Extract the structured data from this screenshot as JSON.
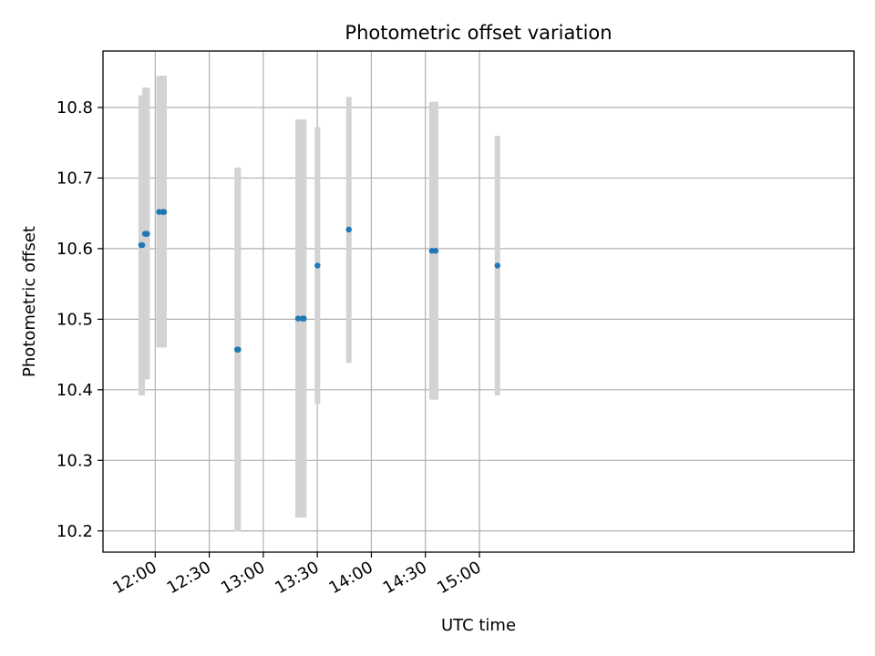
{
  "chart_data": {
    "type": "scatter",
    "title": "Photometric offset variation",
    "xlabel": "UTC time",
    "ylabel": "Photometric offset",
    "x_unit": "minutes after midnight UTC",
    "xlim": [
      691,
      1108
    ],
    "ylim": [
      10.17,
      10.88
    ],
    "x_ticks": [
      {
        "value": 720,
        "label": "12:00"
      },
      {
        "value": 750,
        "label": "12:30"
      },
      {
        "value": 780,
        "label": "13:00"
      },
      {
        "value": 810,
        "label": "13:30"
      },
      {
        "value": 840,
        "label": "14:00"
      },
      {
        "value": 870,
        "label": "14:30"
      },
      {
        "value": 900,
        "label": "15:00"
      }
    ],
    "y_ticks": [
      {
        "value": 10.2,
        "label": "10.2"
      },
      {
        "value": 10.3,
        "label": "10.3"
      },
      {
        "value": 10.4,
        "label": "10.4"
      },
      {
        "value": 10.5,
        "label": "10.5"
      },
      {
        "value": 10.6,
        "label": "10.6"
      },
      {
        "value": 10.7,
        "label": "10.7"
      },
      {
        "value": 10.8,
        "label": "10.8"
      }
    ],
    "grid": true,
    "colors": {
      "points": "#1f77b4",
      "error_bars": "#d3d3d3"
    },
    "points": [
      {
        "time": "11:52",
        "x": 712.2,
        "y": 10.605,
        "err_low": 10.392,
        "err_high": 10.817
      },
      {
        "time": "11:53",
        "x": 712.8,
        "y": 10.605,
        "err_low": 10.392,
        "err_high": 10.817
      },
      {
        "time": "11:54",
        "x": 714.3,
        "y": 10.621,
        "err_low": 10.415,
        "err_high": 10.828
      },
      {
        "time": "11:55",
        "x": 714.9,
        "y": 10.621,
        "err_low": 10.415,
        "err_high": 10.828
      },
      {
        "time": "11:56",
        "x": 715.5,
        "y": 10.621,
        "err_low": 10.415,
        "err_high": 10.828
      },
      {
        "time": "12:02",
        "x": 722.1,
        "y": 10.652,
        "err_low": 10.46,
        "err_high": 10.845
      },
      {
        "time": "12:04",
        "x": 724.3,
        "y": 10.652,
        "err_low": 10.46,
        "err_high": 10.845
      },
      {
        "time": "12:05",
        "x": 724.9,
        "y": 10.652,
        "err_low": 10.46,
        "err_high": 10.845
      },
      {
        "time": "12:45",
        "x": 765.5,
        "y": 10.457,
        "err_low": 10.199,
        "err_high": 10.715
      },
      {
        "time": "12:46",
        "x": 766.1,
        "y": 10.457,
        "err_low": 10.199,
        "err_high": 10.715
      },
      {
        "time": "13:19",
        "x": 799.3,
        "y": 10.501,
        "err_low": 10.219,
        "err_high": 10.783
      },
      {
        "time": "13:22",
        "x": 801.7,
        "y": 10.501,
        "err_low": 10.219,
        "err_high": 10.783
      },
      {
        "time": "13:22",
        "x": 802.5,
        "y": 10.501,
        "err_low": 10.219,
        "err_high": 10.783
      },
      {
        "time": "13:30",
        "x": 810.1,
        "y": 10.576,
        "err_low": 10.38,
        "err_high": 10.772
      },
      {
        "time": "13:47",
        "x": 827.5,
        "y": 10.627,
        "err_low": 10.438,
        "err_high": 10.815
      },
      {
        "time": "14:34",
        "x": 873.6,
        "y": 10.597,
        "err_low": 10.386,
        "err_high": 10.808
      },
      {
        "time": "14:36",
        "x": 875.7,
        "y": 10.597,
        "err_low": 10.386,
        "err_high": 10.808
      },
      {
        "time": "15:10",
        "x": 910.0,
        "y": 10.576,
        "err_low": 10.392,
        "err_high": 10.76
      }
    ]
  }
}
